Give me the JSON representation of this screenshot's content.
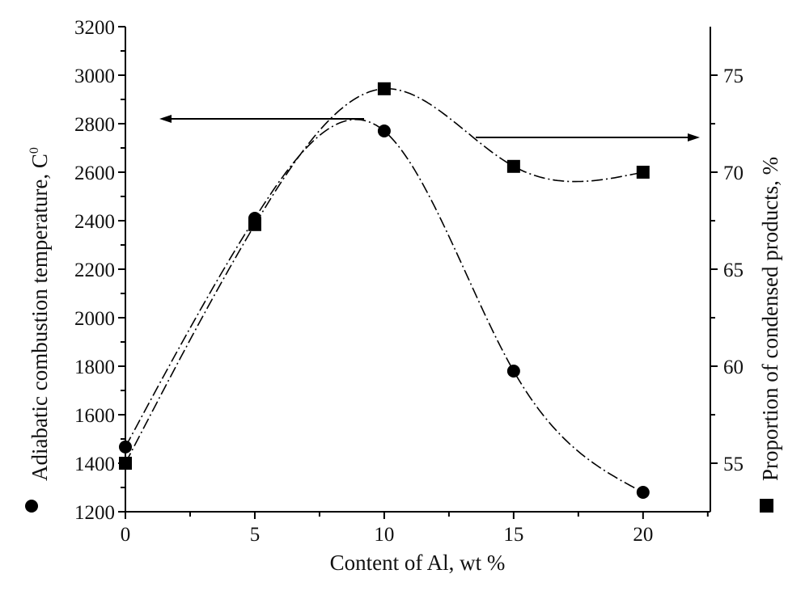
{
  "chart_data": {
    "type": "line",
    "title": "",
    "xlabel": "Content of Al, wt %",
    "ylabel_left": "Adiabatic combustion temperature, C",
    "ylabel_left_superscript": "0",
    "ylabel_right": "Proportion of condensed products, %",
    "xlim": [
      0,
      22.6
    ],
    "ylim_left": [
      1200,
      3200
    ],
    "ylim_right": [
      52.5,
      77.5
    ],
    "x_ticks": [
      "0",
      "5",
      "10",
      "15",
      "20"
    ],
    "y_left_ticks": [
      "1200",
      "1400",
      "1600",
      "1800",
      "2000",
      "2200",
      "2400",
      "2600",
      "2800",
      "3000",
      "3200"
    ],
    "y_right_ticks": [
      "55",
      "60",
      "65",
      "70",
      "75"
    ],
    "grid": false,
    "series": [
      {
        "name": "Adiabatic combustion temperature",
        "axis": "left",
        "marker": "circle",
        "x": [
          0,
          5,
          10,
          15,
          20
        ],
        "values": [
          1467,
          2410,
          2770,
          1780,
          1280
        ]
      },
      {
        "name": "Proportion of condensed products",
        "axis": "right",
        "marker": "square",
        "x": [
          0,
          5,
          10,
          15,
          20
        ],
        "values": [
          55.0,
          67.3,
          74.3,
          70.3,
          70.0
        ]
      }
    ],
    "annotations": [
      {
        "type": "arrow",
        "direction": "left",
        "series": "Adiabatic combustion temperature"
      },
      {
        "type": "arrow",
        "direction": "right",
        "series": "Proportion of condensed products"
      }
    ]
  }
}
